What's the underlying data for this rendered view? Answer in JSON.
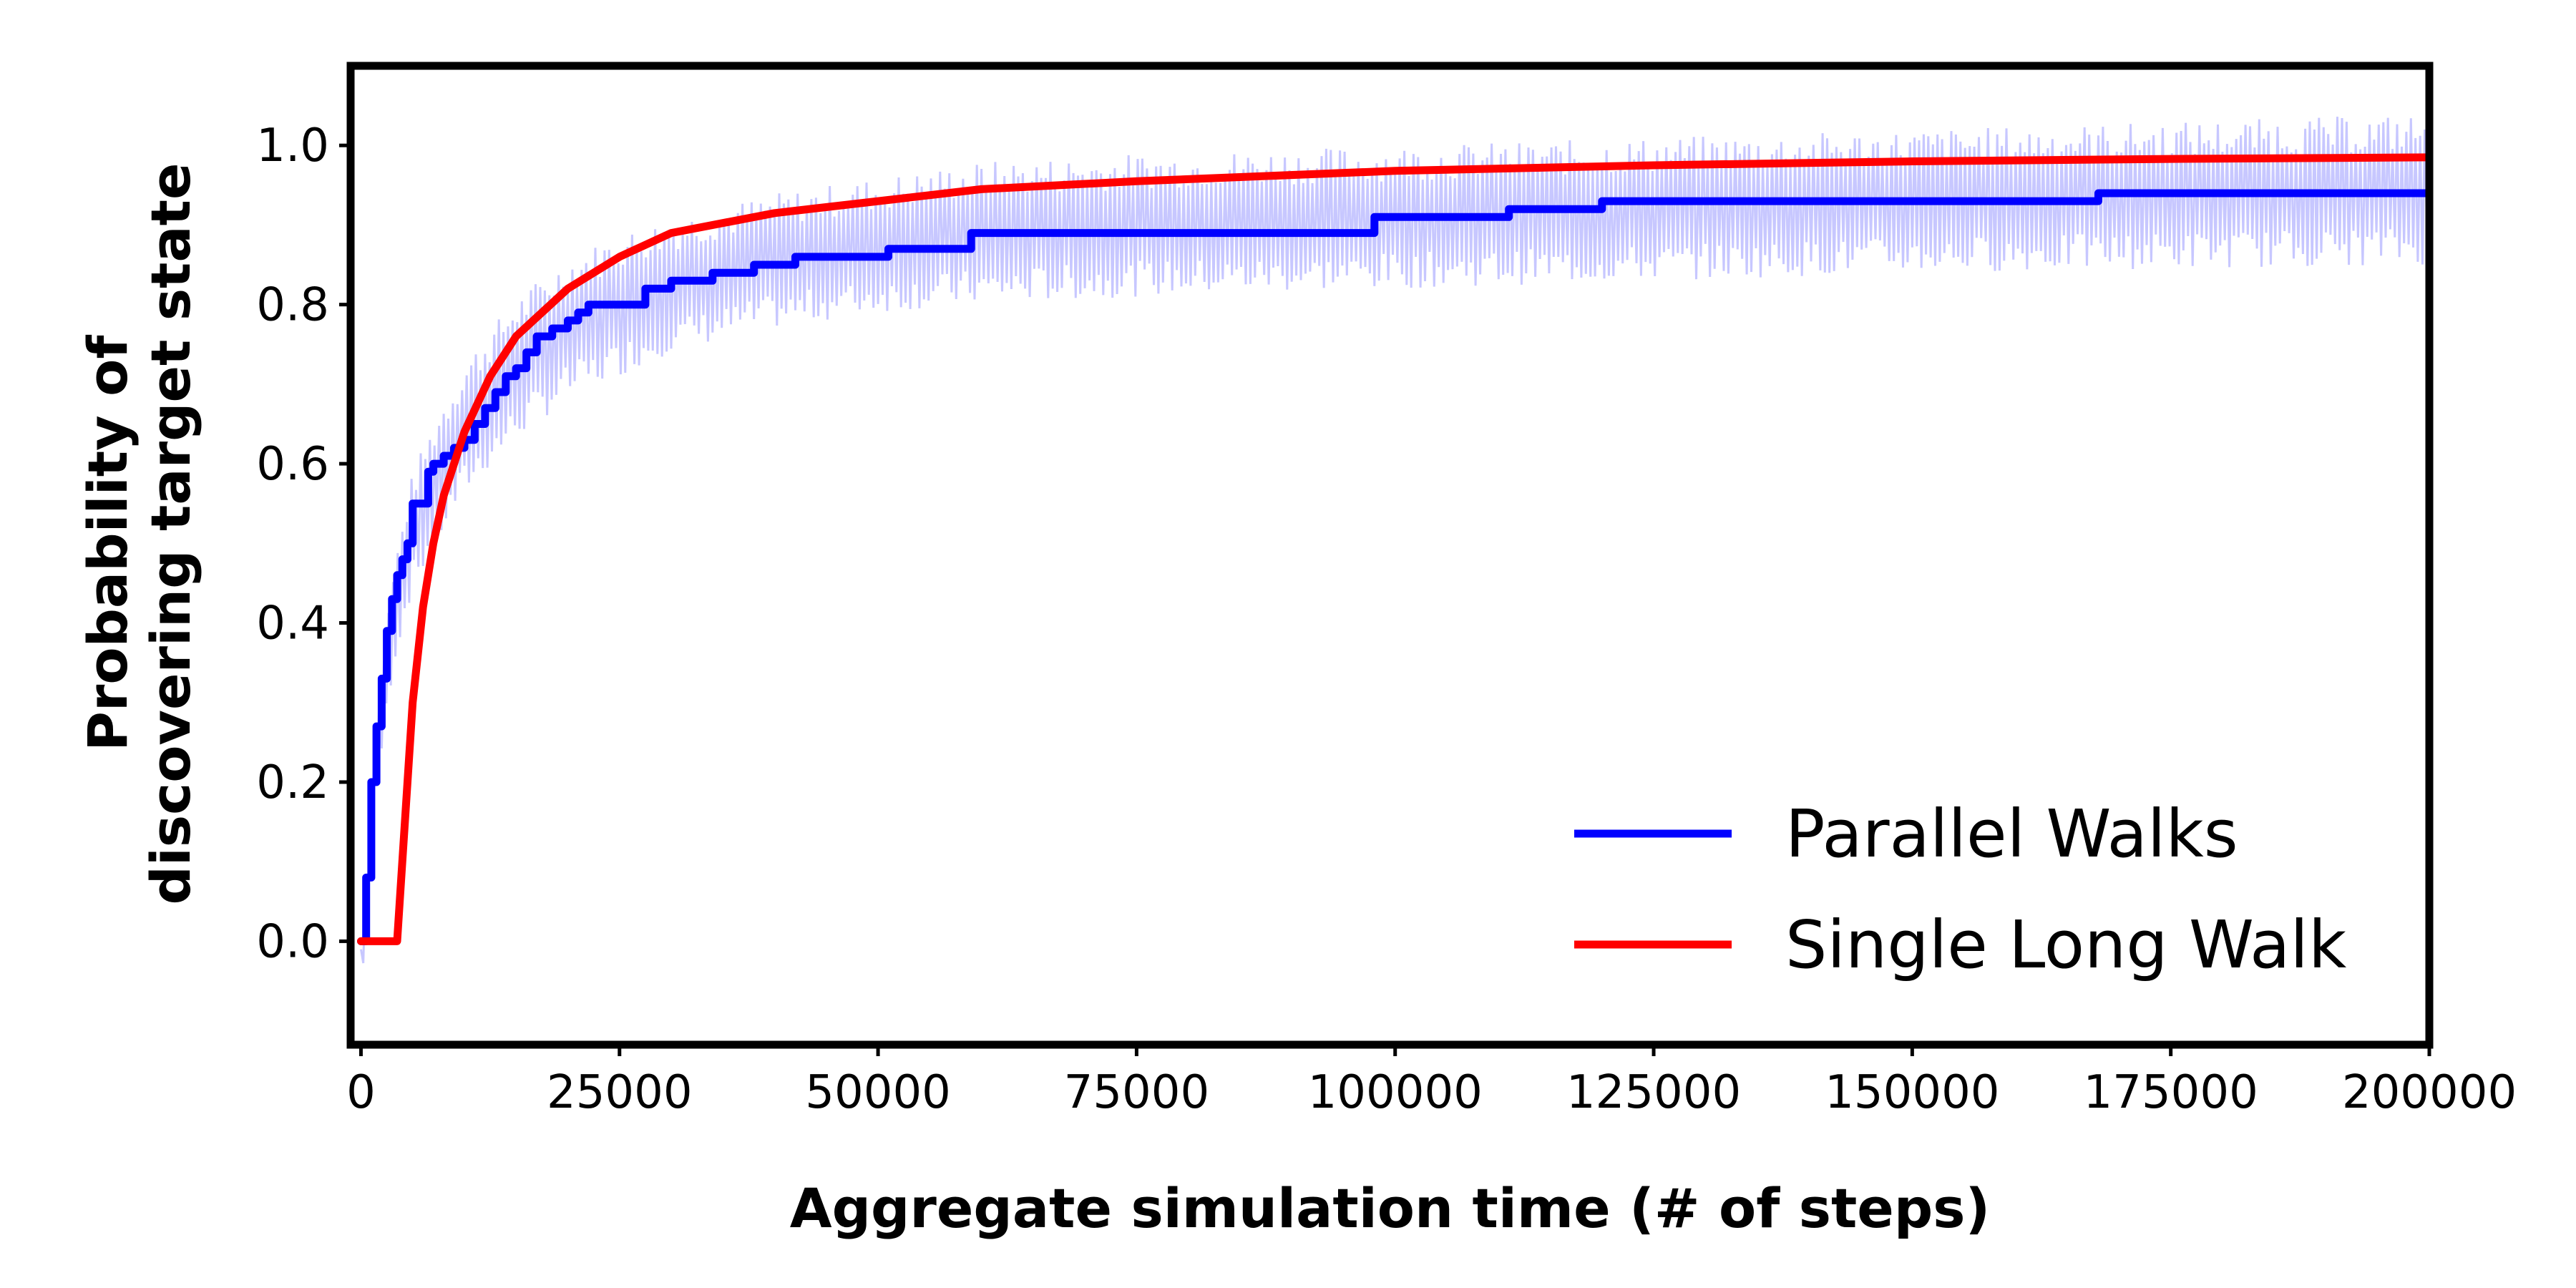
{
  "chart_data": {
    "type": "line",
    "title": "",
    "xlabel": "Aggregate simulation time (# of steps)",
    "ylabel_lines": [
      "Probability of",
      "discovering target state"
    ],
    "xlim": [
      -1000,
      200000
    ],
    "ylim": [
      -0.13,
      1.1
    ],
    "xticks": [
      0,
      25000,
      50000,
      75000,
      100000,
      125000,
      150000,
      175000,
      200000
    ],
    "yticks": [
      0.0,
      0.2,
      0.4,
      0.6,
      0.8,
      1.0
    ],
    "xtick_labels": [
      "0",
      "25000",
      "50000",
      "75000",
      "100000",
      "125000",
      "150000",
      "175000",
      "200000"
    ],
    "ytick_labels": [
      "0.0",
      "0.2",
      "0.4",
      "0.6",
      "0.8",
      "1.0"
    ],
    "grid": false,
    "legend_position": "bottom-right",
    "series": [
      {
        "name": "Parallel Walks",
        "color": "#0000ff",
        "style": "step",
        "points": [
          [
            0,
            0.0
          ],
          [
            500,
            0.08
          ],
          [
            1000,
            0.2
          ],
          [
            1500,
            0.27
          ],
          [
            2000,
            0.33
          ],
          [
            2500,
            0.39
          ],
          [
            3000,
            0.43
          ],
          [
            3500,
            0.46
          ],
          [
            4000,
            0.48
          ],
          [
            4500,
            0.5
          ],
          [
            5000,
            0.55
          ],
          [
            6000,
            0.55
          ],
          [
            6500,
            0.59
          ],
          [
            7000,
            0.6
          ],
          [
            8000,
            0.61
          ],
          [
            9000,
            0.62
          ],
          [
            10000,
            0.63
          ],
          [
            11000,
            0.65
          ],
          [
            12000,
            0.67
          ],
          [
            13000,
            0.69
          ],
          [
            14000,
            0.71
          ],
          [
            15000,
            0.72
          ],
          [
            16000,
            0.74
          ],
          [
            17000,
            0.76
          ],
          [
            18500,
            0.77
          ],
          [
            20000,
            0.78
          ],
          [
            21000,
            0.79
          ],
          [
            22000,
            0.8
          ],
          [
            27000,
            0.8
          ],
          [
            27500,
            0.82
          ],
          [
            30000,
            0.83
          ],
          [
            34000,
            0.84
          ],
          [
            38000,
            0.85
          ],
          [
            42000,
            0.86
          ],
          [
            50000,
            0.86
          ],
          [
            51000,
            0.87
          ],
          [
            58000,
            0.87
          ],
          [
            59000,
            0.89
          ],
          [
            97000,
            0.89
          ],
          [
            98000,
            0.91
          ],
          [
            110000,
            0.91
          ],
          [
            111000,
            0.92
          ],
          [
            119000,
            0.92
          ],
          [
            120000,
            0.93
          ],
          [
            167000,
            0.93
          ],
          [
            168000,
            0.94
          ],
          [
            200000,
            0.94
          ]
        ]
      },
      {
        "name": "Single Long Walk",
        "color": "#ff0000",
        "style": "line",
        "points": [
          [
            0,
            0.0
          ],
          [
            3500,
            0.0
          ],
          [
            5000,
            0.3
          ],
          [
            6000,
            0.42
          ],
          [
            7000,
            0.5
          ],
          [
            8000,
            0.56
          ],
          [
            10000,
            0.64
          ],
          [
            12500,
            0.71
          ],
          [
            15000,
            0.76
          ],
          [
            20000,
            0.82
          ],
          [
            25000,
            0.86
          ],
          [
            30000,
            0.89
          ],
          [
            40000,
            0.915
          ],
          [
            50000,
            0.93
          ],
          [
            60000,
            0.945
          ],
          [
            75000,
            0.955
          ],
          [
            100000,
            0.968
          ],
          [
            125000,
            0.975
          ],
          [
            150000,
            0.98
          ],
          [
            175000,
            0.983
          ],
          [
            200000,
            0.985
          ]
        ]
      }
    ],
    "band": {
      "color": "#9999ff",
      "opacity": 0.55,
      "description_free": true,
      "lower": [
        [
          0,
          -0.08
        ],
        [
          1000,
          0.1
        ],
        [
          2000,
          0.23
        ],
        [
          3000,
          0.33
        ],
        [
          4000,
          0.39
        ],
        [
          5000,
          0.44
        ],
        [
          7500,
          0.5
        ],
        [
          10000,
          0.56
        ],
        [
          15000,
          0.63
        ],
        [
          20000,
          0.68
        ],
        [
          25000,
          0.71
        ],
        [
          30000,
          0.74
        ],
        [
          40000,
          0.77
        ],
        [
          50000,
          0.79
        ],
        [
          60000,
          0.8
        ],
        [
          75000,
          0.81
        ],
        [
          100000,
          0.82
        ],
        [
          125000,
          0.83
        ],
        [
          150000,
          0.84
        ],
        [
          175000,
          0.845
        ],
        [
          200000,
          0.85
        ]
      ],
      "upper": [
        [
          0,
          0.0
        ],
        [
          1000,
          0.22
        ],
        [
          2000,
          0.35
        ],
        [
          3000,
          0.46
        ],
        [
          4000,
          0.53
        ],
        [
          5000,
          0.59
        ],
        [
          7500,
          0.67
        ],
        [
          10000,
          0.73
        ],
        [
          15000,
          0.81
        ],
        [
          20000,
          0.86
        ],
        [
          25000,
          0.89
        ],
        [
          30000,
          0.91
        ],
        [
          40000,
          0.94
        ],
        [
          50000,
          0.96
        ],
        [
          60000,
          0.98
        ],
        [
          75000,
          0.99
        ],
        [
          100000,
          1.0
        ],
        [
          125000,
          1.01
        ],
        [
          150000,
          1.02
        ],
        [
          175000,
          1.03
        ],
        [
          200000,
          1.04
        ]
      ]
    }
  }
}
